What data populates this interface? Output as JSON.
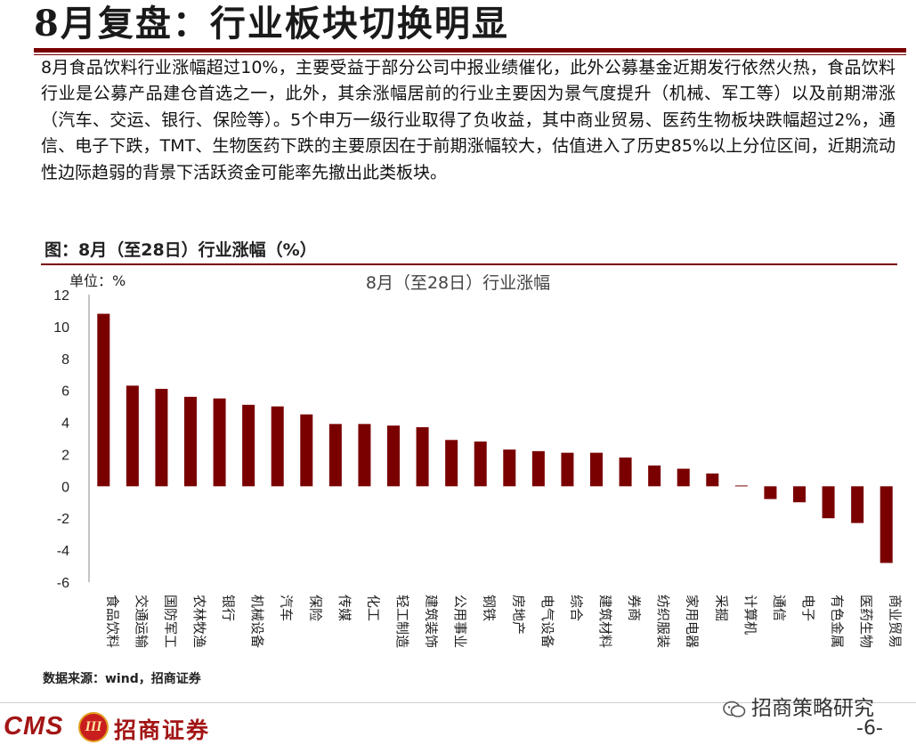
{
  "header": {
    "title": "8月复盘：行业板块切换明显"
  },
  "body_text": "8月食品饮料行业涨幅超过10%，主要受益于部分公司中报业绩催化，此外公募基金近期发行依然火热，食品饮料行业是公募产品建仓首选之一，此外，其余涨幅居前的行业主要因为景气度提升（机械、军工等）以及前期滞涨（汽车、交运、银行、保险等）。5个申万一级行业取得了负收益，其中商业贸易、医药生物板块跌幅超过2%，通信、电子下跌，TMT、生物医药下跌的主要原因在于前期涨幅较大，估值进入了历史85%以上分位区间，近期流动性边际趋弱的背景下活跃资金可能率先撤出此类板块。",
  "figure": {
    "title": "图：8月（至28日）行业涨幅（%）",
    "unit": "单位：%",
    "source": "数据来源：wind，招商证券"
  },
  "chart_data": {
    "type": "bar",
    "title": "8月（至28日）行业涨幅",
    "ylabel": "单位：%",
    "ylim": [
      -6,
      12
    ],
    "yticks": [
      12,
      10,
      8,
      6,
      4,
      2,
      0,
      -2,
      -4,
      -6
    ],
    "categories": [
      "食品饮料",
      "交通运输",
      "国防军工",
      "农林牧渔",
      "银行",
      "机械设备",
      "汽车",
      "保险",
      "传媒",
      "化工",
      "轻工制造",
      "建筑装饰",
      "公用事业",
      "钢铁",
      "房地产",
      "电气设备",
      "综合",
      "建筑材料",
      "券商",
      "纺织服装",
      "家用电器",
      "采掘",
      "计算机",
      "通信",
      "电子",
      "有色金属",
      "医药生物",
      "商业贸易"
    ],
    "values": [
      10.8,
      6.3,
      6.1,
      5.6,
      5.5,
      5.1,
      5.0,
      4.5,
      3.9,
      3.9,
      3.8,
      3.7,
      2.9,
      2.8,
      2.3,
      2.2,
      2.1,
      2.1,
      1.8,
      1.3,
      1.1,
      0.8,
      0.05,
      -0.8,
      -1.0,
      -2.0,
      -2.3,
      -4.8
    ],
    "bar_color": "#7a0000",
    "grid": false
  },
  "footer": {
    "logo_text": "CMS",
    "logo_emblem": "III",
    "company": "招商证券",
    "watermark": "招商策略研究",
    "page": "-6-"
  },
  "colors": {
    "accent": "#7a0000",
    "logo_red": "#a31515"
  }
}
